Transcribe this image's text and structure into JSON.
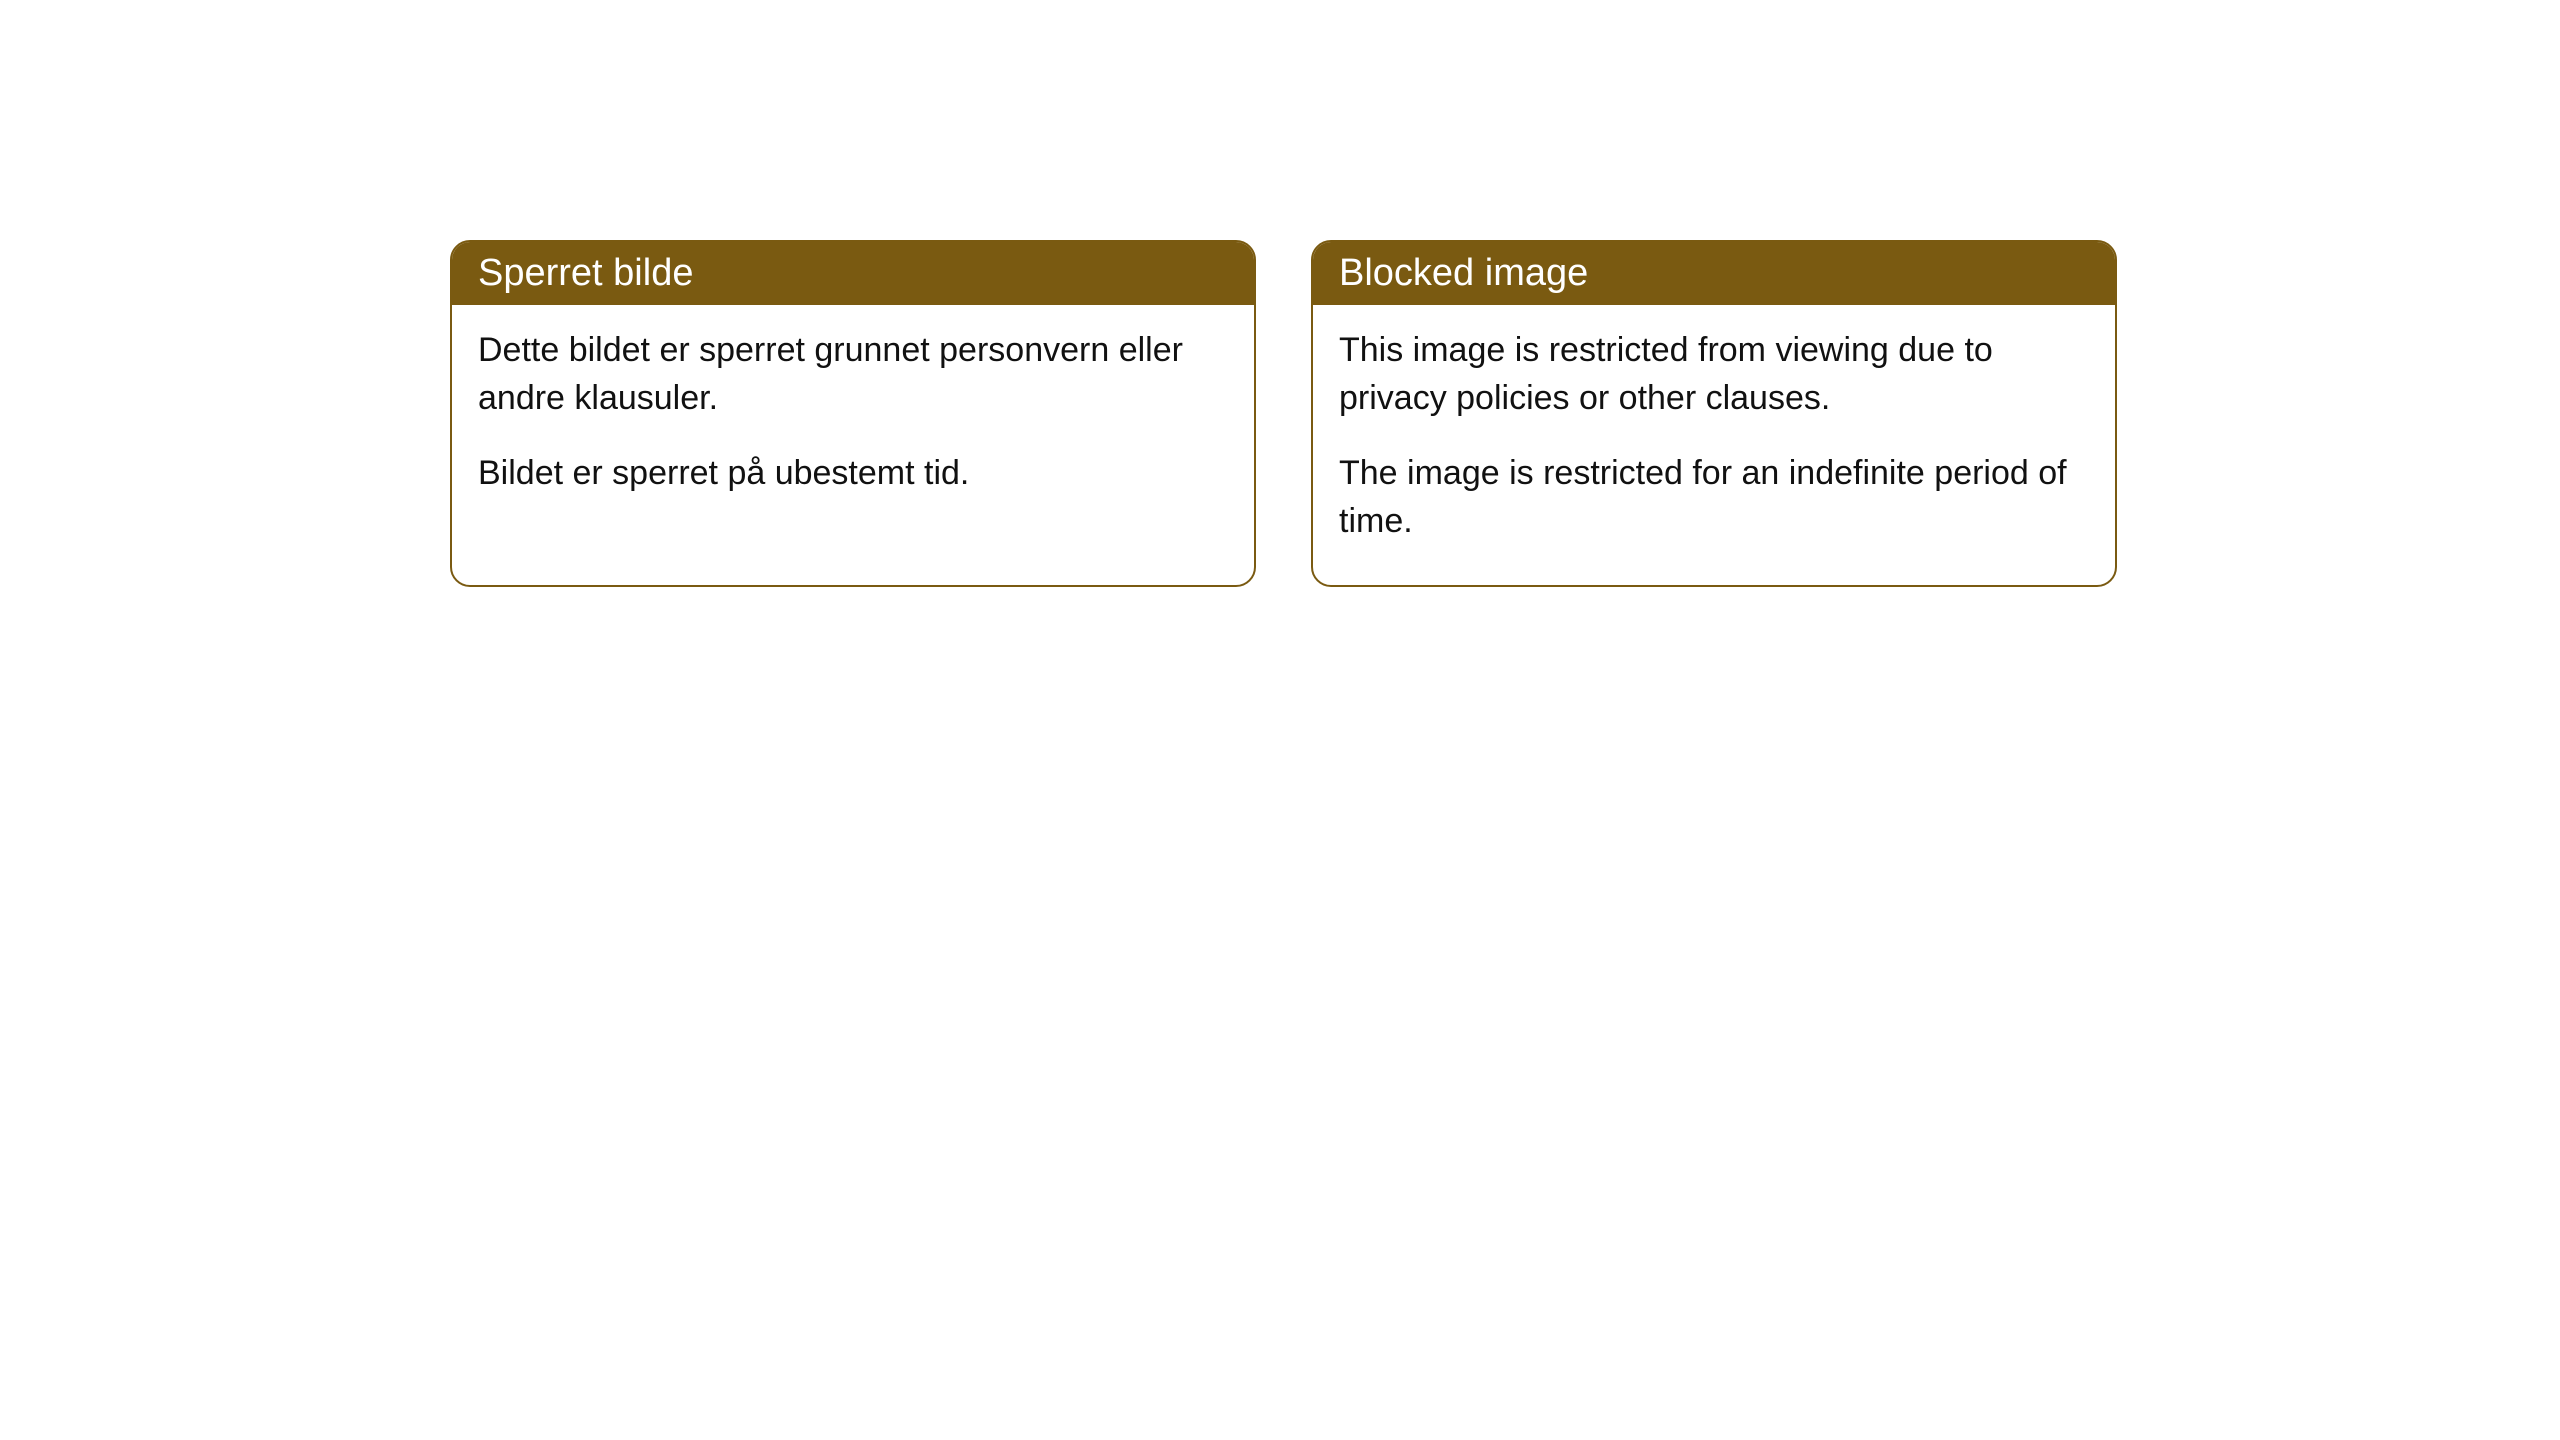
{
  "cards": [
    {
      "header": "Sperret bilde",
      "para1": "Dette bildet er sperret grunnet personvern eller andre klausuler.",
      "para2": "Bildet er sperret på ubestemt tid."
    },
    {
      "header": "Blocked image",
      "para1": "This image is restricted from viewing due to privacy policies or other clauses.",
      "para2": "The image is restricted for an indefinite period of time."
    }
  ],
  "style": {
    "header_bg": "#7a5a11",
    "header_text_color": "#ffffff",
    "border_color": "#7a5a11",
    "body_bg": "#ffffff",
    "body_text_color": "#111111",
    "border_radius": "20px",
    "header_fontsize": 38,
    "body_fontsize": 34
  }
}
